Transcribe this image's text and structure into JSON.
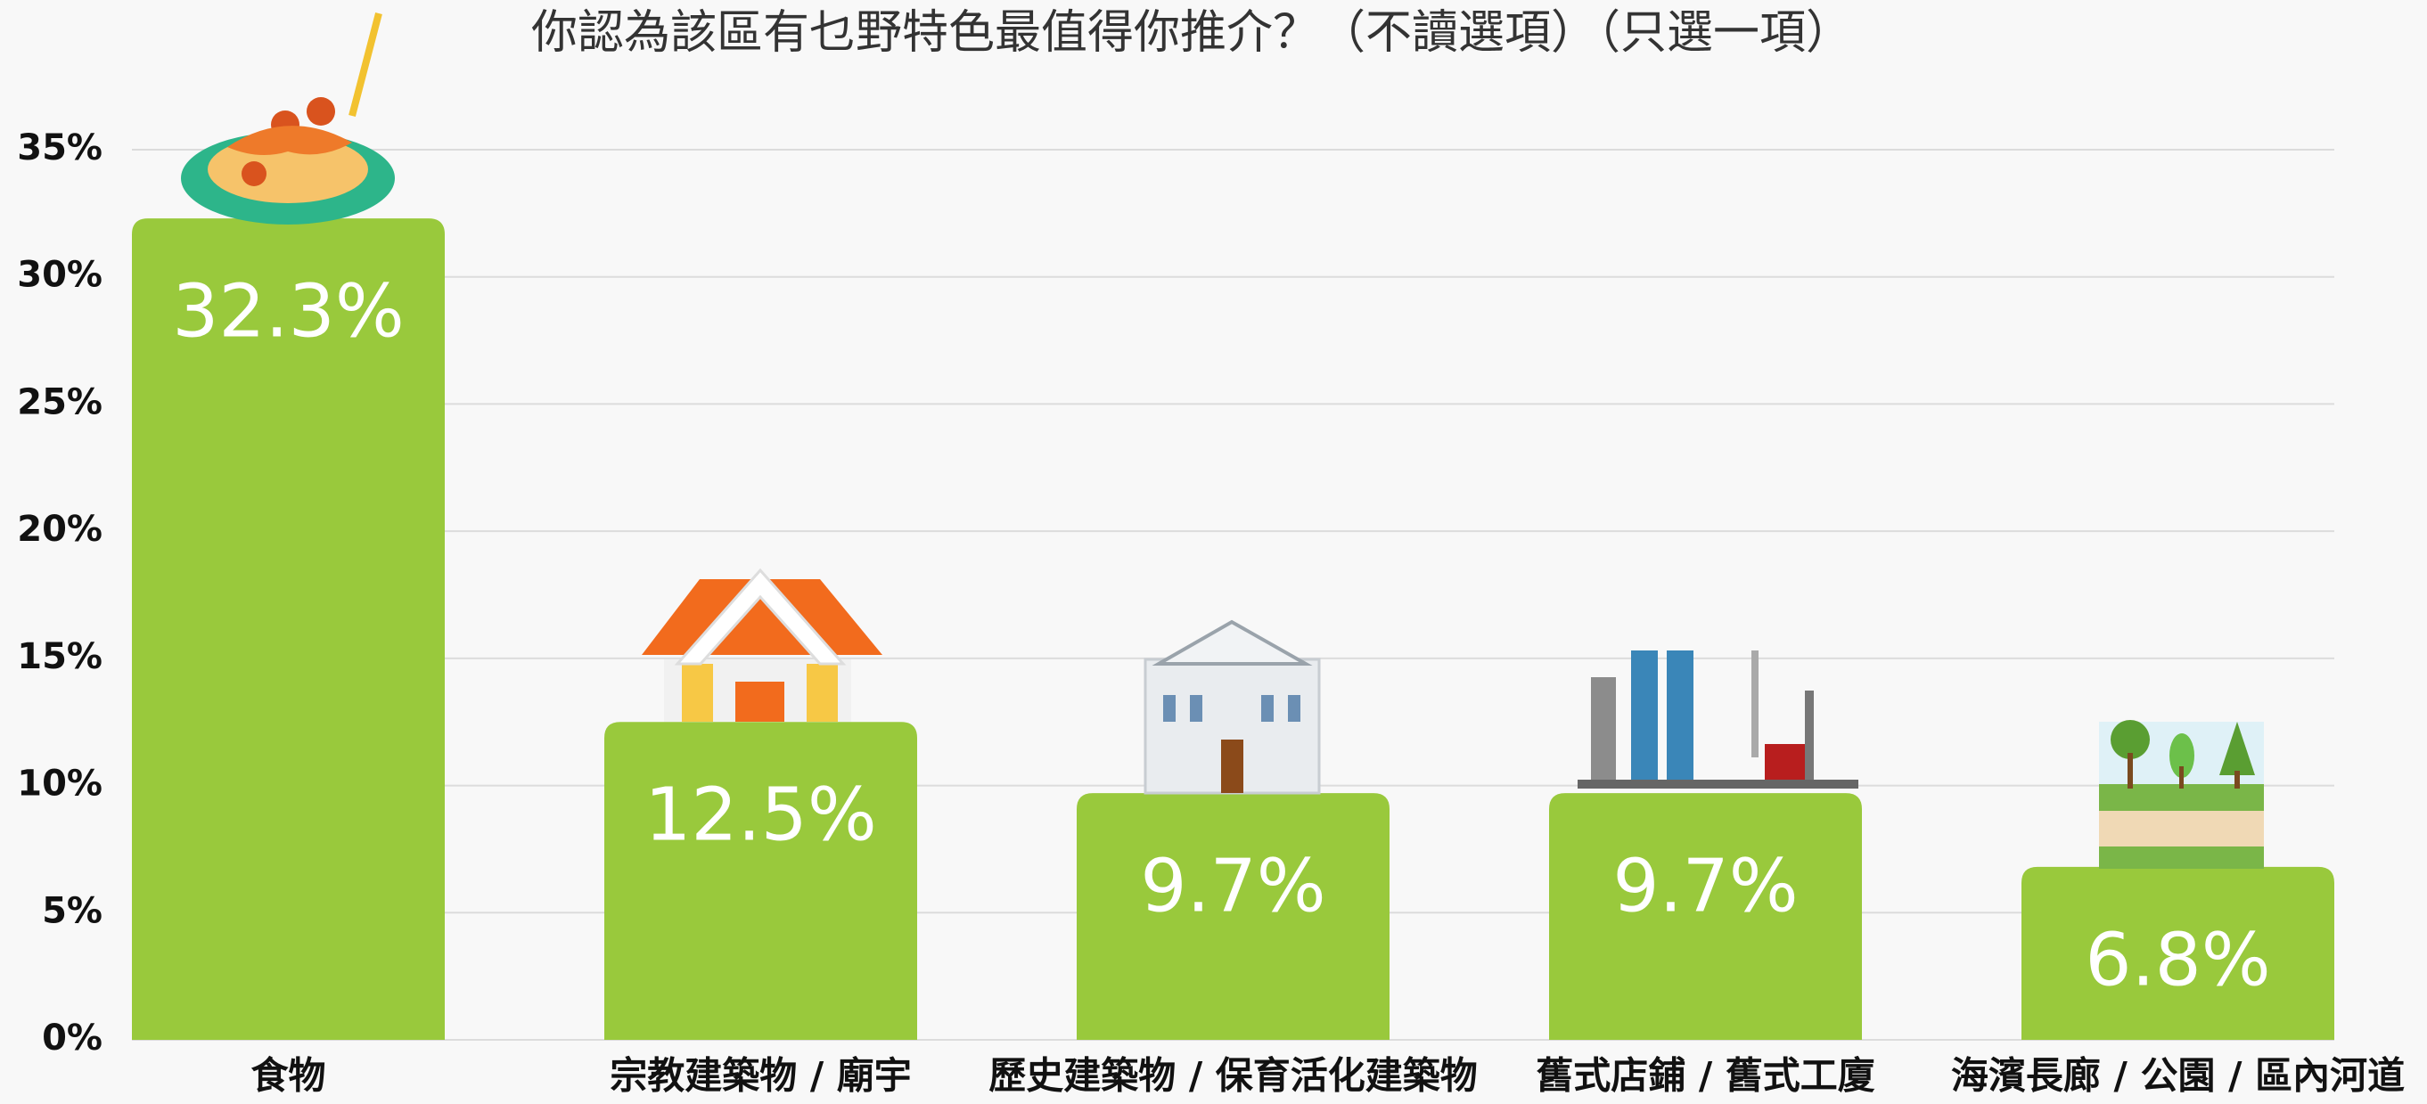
{
  "chart_data": {
    "type": "bar",
    "title": "你認為該區有乜野特色最值得你推介？（不讀選項）（只選一項）",
    "categories": [
      "食物",
      "宗教建築物 / 廟宇",
      "歷史建築物 / 保育活化建築物",
      "舊式店鋪 / 舊式工廈",
      "海濱長廊 / 公園 / 區內河道"
    ],
    "values": [
      32.3,
      12.5,
      9.7,
      9.7,
      6.8
    ],
    "value_labels": [
      "32.3%",
      "12.5%",
      "9.7%",
      "9.7%",
      "6.8%"
    ],
    "color": "#99c93c",
    "ylim": [
      0,
      35
    ],
    "yticks": [
      {
        "value": 0,
        "label": "0%"
      },
      {
        "value": 5,
        "label": "5%"
      },
      {
        "value": 10,
        "label": "10%"
      },
      {
        "value": 15,
        "label": "15%"
      },
      {
        "value": 20,
        "label": "20%"
      },
      {
        "value": 25,
        "label": "25%"
      },
      {
        "value": 30,
        "label": "30%"
      },
      {
        "value": 35,
        "label": "35%"
      }
    ],
    "grid": true
  }
}
